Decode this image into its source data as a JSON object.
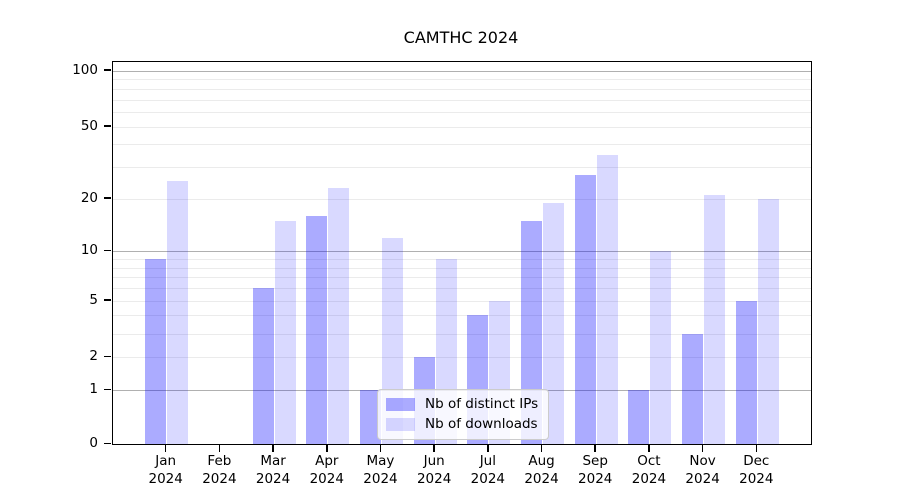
{
  "chart_data": {
    "type": "bar",
    "title": "CAMTHC 2024",
    "categories": [
      "Jan 2024",
      "Feb 2024",
      "Mar 2024",
      "Apr 2024",
      "May 2024",
      "Jun 2024",
      "Jul 2024",
      "Aug 2024",
      "Sep 2024",
      "Oct 2024",
      "Nov 2024",
      "Dec 2024"
    ],
    "series": [
      {
        "name": "Nb of distinct IPs",
        "color": "rgba(0,0,255,0.33)",
        "color_on_white": "#aaaaff",
        "values": [
          9,
          0,
          6,
          16,
          1,
          2,
          4,
          15,
          27,
          1,
          3,
          5
        ]
      },
      {
        "name": "Nb of downloads",
        "color": "rgba(0,0,255,0.15)",
        "color_on_white": "#d9d9ff",
        "values": [
          25,
          0,
          15,
          23,
          12,
          9,
          5,
          19,
          35,
          10,
          21,
          20
        ]
      }
    ],
    "xlabel": "",
    "ylabel": "",
    "y_axis": {
      "scale": "log(1+x)",
      "tick_labels": [
        "100",
        "50",
        "20",
        "10",
        "5",
        "2",
        "1",
        "0"
      ],
      "tick_values": [
        100,
        50,
        20,
        10,
        5,
        2,
        1,
        0
      ],
      "major_gridline_values": [
        1,
        10,
        100
      ],
      "minor_gridline_values": [
        2,
        3,
        4,
        5,
        6,
        7,
        8,
        9,
        20,
        30,
        40,
        50,
        60,
        70,
        80,
        90
      ],
      "ylim": [
        0,
        110
      ]
    },
    "grid": true,
    "legend": {
      "location": "lower center",
      "entries": [
        "Nb of distinct IPs",
        "Nb of downloads"
      ]
    },
    "colors": {
      "major_grid": "#b0b0b0",
      "minor_grid": "#ebebeb",
      "spine": "#000000",
      "background": "#ffffff"
    }
  }
}
